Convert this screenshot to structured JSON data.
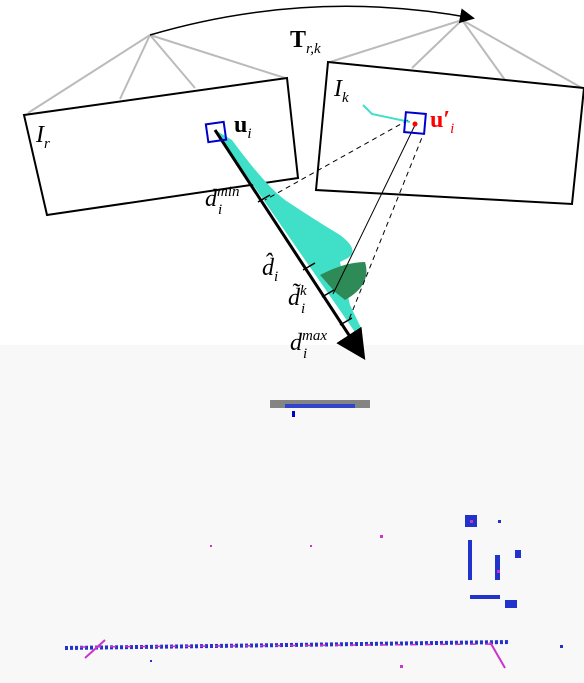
{
  "labels": {
    "transform": {
      "base": "T",
      "sub": "r,k"
    },
    "ref_image": {
      "base": "I",
      "sub": "r"
    },
    "ref_pixel": {
      "base": "u",
      "sub": "i"
    },
    "cur_image": {
      "base": "I",
      "sub": "k"
    },
    "cur_pixel": {
      "base": "u′",
      "sub": "i"
    },
    "depth_min": {
      "base": "d",
      "sup": "min",
      "sub": "i"
    },
    "depth_est": {
      "base": "d̂",
      "sub": "i"
    },
    "depth_meas": {
      "base": "d̃",
      "sup": "k",
      "sub": "i"
    },
    "depth_max": {
      "base": "d",
      "sup": "max",
      "sub": "i"
    }
  }
}
